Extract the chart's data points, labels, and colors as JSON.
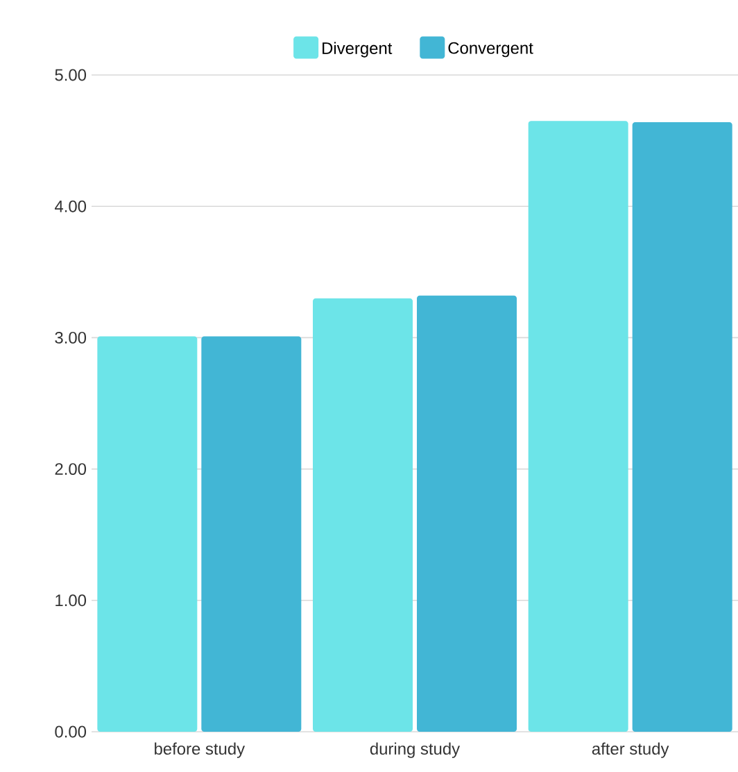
{
  "chart_data": {
    "type": "bar",
    "categories": [
      "before study",
      "during study",
      "after study"
    ],
    "series": [
      {
        "name": "Divergent",
        "color": "#6ce4e8",
        "values": [
          3.01,
          3.3,
          4.65
        ]
      },
      {
        "name": "Convergent",
        "color": "#42b6d5",
        "values": [
          3.01,
          3.32,
          4.64
        ]
      }
    ],
    "ylim": [
      0,
      5
    ],
    "yticks": [
      {
        "value": 0,
        "label": "0.00"
      },
      {
        "value": 1,
        "label": "1.00"
      },
      {
        "value": 2,
        "label": "2.00"
      },
      {
        "value": 3,
        "label": "3.00"
      },
      {
        "value": 4,
        "label": "4.00"
      },
      {
        "value": 5,
        "label": "5.00"
      }
    ],
    "grid": "y",
    "legend": "top"
  }
}
